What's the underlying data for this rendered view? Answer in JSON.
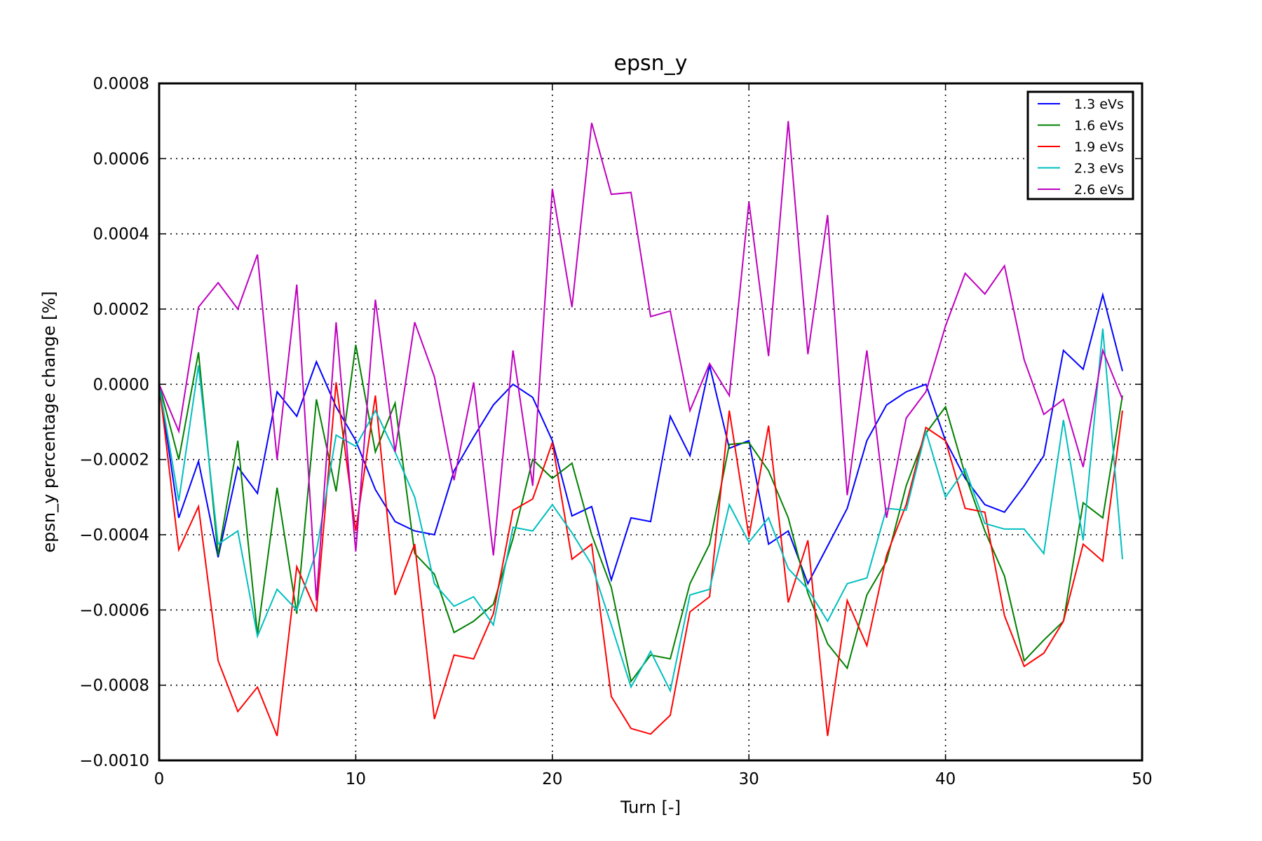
{
  "chart_data": {
    "type": "line",
    "title": "epsn_y",
    "xlabel": "Turn [-]",
    "ylabel": "epsn_y percentage change [%]",
    "xlim": [
      0,
      50
    ],
    "ylim": [
      -0.001,
      0.0008
    ],
    "xticks": [
      0,
      10,
      20,
      30,
      40,
      50
    ],
    "xtick_labels": [
      "0",
      "10",
      "20",
      "30",
      "40",
      "50"
    ],
    "yticks": [
      -0.001,
      -0.0008,
      -0.0006,
      -0.0004,
      -0.0002,
      0.0,
      0.0002,
      0.0004,
      0.0006,
      0.0008
    ],
    "ytick_labels": [
      "−0.0010",
      "−0.0008",
      "−0.0006",
      "−0.0004",
      "−0.0002",
      "0.0000",
      "0.0002",
      "0.0004",
      "0.0006",
      "0.0008"
    ],
    "grid": true,
    "legend_position": "top-right",
    "x": [
      0,
      1,
      2,
      3,
      4,
      5,
      6,
      7,
      8,
      9,
      10,
      11,
      12,
      13,
      14,
      15,
      16,
      17,
      18,
      19,
      20,
      21,
      22,
      23,
      24,
      25,
      26,
      27,
      28,
      29,
      30,
      31,
      32,
      33,
      34,
      35,
      36,
      37,
      38,
      39,
      40,
      41,
      42,
      43,
      44,
      45,
      46,
      47,
      48,
      49
    ],
    "series": [
      {
        "name": "1.3 eVs",
        "color": "#0000ff",
        "values": [
          0.0,
          -0.000355,
          -0.000205,
          -0.00046,
          -0.00022,
          -0.00029,
          -2e-05,
          -8.5e-05,
          6e-05,
          -6e-05,
          -0.00015,
          -0.00028,
          -0.000365,
          -0.00039,
          -0.0004,
          -0.00023,
          -0.00014,
          -5.5e-05,
          0.0,
          -3.5e-05,
          -0.00015,
          -0.00035,
          -0.000325,
          -0.00052,
          -0.000355,
          -0.000365,
          -8.5e-05,
          -0.00019,
          5e-05,
          -0.00017,
          -0.00015,
          -0.000425,
          -0.00039,
          -0.00053,
          -0.00043,
          -0.00033,
          -0.00015,
          -5.5e-05,
          -2e-05,
          0.0,
          -0.00015,
          -0.00025,
          -0.00032,
          -0.00034,
          -0.00027,
          -0.00019,
          9e-05,
          4e-05,
          0.000238,
          3.5e-05
        ]
      },
      {
        "name": "1.6 eVs",
        "color": "#008000",
        "values": [
          0.0,
          -0.0002,
          8.5e-05,
          -0.000455,
          -0.00015,
          -0.000665,
          -0.000275,
          -0.00061,
          -4e-05,
          -0.000285,
          0.000105,
          -0.00018,
          -5e-05,
          -0.00045,
          -0.000505,
          -0.00066,
          -0.00063,
          -0.000585,
          -0.00041,
          -0.0002,
          -0.00025,
          -0.00021,
          -0.0004,
          -0.00054,
          -0.00079,
          -0.00072,
          -0.00073,
          -0.00053,
          -0.000425,
          -0.00016,
          -0.000155,
          -0.00023,
          -0.000355,
          -0.000555,
          -0.00069,
          -0.000755,
          -0.00056,
          -0.00047,
          -0.00027,
          -0.00013,
          -6e-05,
          -0.00024,
          -0.00039,
          -0.00051,
          -0.000735,
          -0.00068,
          -0.00063,
          -0.000315,
          -0.000355,
          -3e-05
        ]
      },
      {
        "name": "1.9 eVs",
        "color": "#ff0000",
        "values": [
          0.0,
          -0.00044,
          -0.000325,
          -0.000735,
          -0.00087,
          -0.000805,
          -0.000935,
          -0.000485,
          -0.000605,
          5e-06,
          -0.00039,
          -3e-05,
          -0.00056,
          -0.000425,
          -0.00089,
          -0.00072,
          -0.00073,
          -0.00061,
          -0.000335,
          -0.000305,
          -0.000155,
          -0.000465,
          -0.000425,
          -0.00083,
          -0.000915,
          -0.00093,
          -0.00088,
          -0.000605,
          -0.000565,
          -7e-05,
          -0.000405,
          -0.00011,
          -0.00058,
          -0.000415,
          -0.000935,
          -0.000575,
          -0.000695,
          -0.000455,
          -0.00032,
          -0.000115,
          -0.00015,
          -0.00033,
          -0.00034,
          -0.000615,
          -0.00075,
          -0.000715,
          -0.00063,
          -0.000425,
          -0.00047,
          -7e-05
        ]
      },
      {
        "name": "2.3 eVs",
        "color": "#00bfbf",
        "values": [
          0.0,
          -0.00031,
          5e-05,
          -0.000425,
          -0.00039,
          -0.00067,
          -0.000545,
          -0.0006,
          -0.000445,
          -0.000135,
          -0.000165,
          -7e-05,
          -0.00018,
          -0.0003,
          -0.00053,
          -0.00059,
          -0.000565,
          -0.00064,
          -0.00038,
          -0.00039,
          -0.00032,
          -0.000395,
          -0.00048,
          -0.00064,
          -0.000805,
          -0.00071,
          -0.000815,
          -0.00056,
          -0.000545,
          -0.00032,
          -0.00042,
          -0.000355,
          -0.00049,
          -0.000545,
          -0.00063,
          -0.00053,
          -0.000515,
          -0.00033,
          -0.000335,
          -0.000125,
          -0.0003,
          -0.000225,
          -0.00037,
          -0.000385,
          -0.000385,
          -0.00045,
          -9.5e-05,
          -0.000415,
          0.000148,
          -0.000465
        ]
      },
      {
        "name": "2.6 eVs",
        "color": "#bf00bf",
        "values": [
          0.0,
          -0.000125,
          0.000205,
          0.00027,
          0.0002,
          0.000345,
          -0.0002,
          0.000265,
          -0.000575,
          0.000165,
          -0.000445,
          0.000225,
          -0.00018,
          0.000165,
          2e-05,
          -0.000255,
          5e-06,
          -0.000455,
          9e-05,
          -0.00027,
          0.00052,
          0.000205,
          0.000695,
          0.000505,
          0.00051,
          0.00018,
          0.000195,
          -7e-05,
          5.5e-05,
          -3e-05,
          0.000485,
          7.5e-05,
          0.0007,
          8e-05,
          0.00045,
          -0.000295,
          9e-05,
          -0.000355,
          -9e-05,
          -2e-05,
          0.000155,
          0.000295,
          0.00024,
          0.000315,
          6.5e-05,
          -8e-05,
          -4e-05,
          -0.00022,
          9e-05,
          -4e-05
        ]
      }
    ]
  }
}
